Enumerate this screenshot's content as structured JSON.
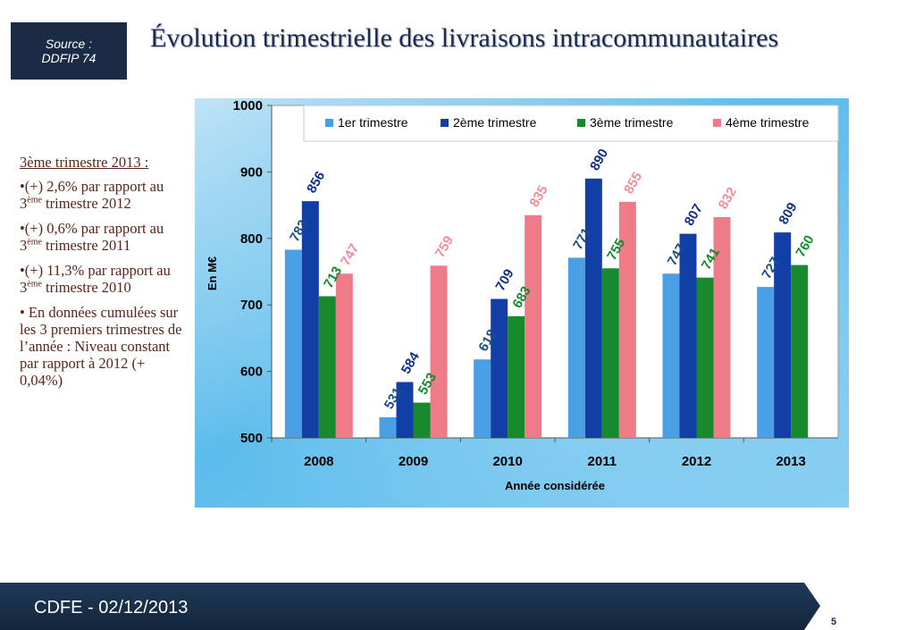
{
  "source": {
    "line1": "Source :",
    "line2": "DDFIP 74"
  },
  "title": "Évolution trimestrielle des livraisons intracommunautaires",
  "side_notes": {
    "heading": "3ème trimestre 2013 :",
    "items": [
      {
        "pre": "•(+) 2,6% par rapport au 3",
        "sup": "ème",
        "post": " trimestre 2012"
      },
      {
        "pre": "•(+) 0,6% par rapport au 3",
        "sup": "ème",
        "post": " trimestre 2011"
      },
      {
        "pre": "•(+) 11,3% par rapport au 3",
        "sup": "ème",
        "post": " trimestre 2010"
      },
      {
        "pre": "• En données cumulées sur les 3 premiers trimestres de l’année : Niveau constant par rapport à 2012 (+ 0,04%)",
        "sup": "",
        "post": ""
      }
    ]
  },
  "footer": {
    "text": "CDFE - 02/12/2013",
    "page_number": "5"
  },
  "colors": {
    "q1": "#4a9fe4",
    "q2": "#123fa6",
    "q3": "#168a2c",
    "q4": "#f07b88",
    "q4_label": "#f48c98",
    "q1_label": "#1a4d8c",
    "q2_label": "#102f88",
    "q3_label": "#128a2a"
  },
  "chart_data": {
    "type": "bar",
    "categories": [
      "2008",
      "2009",
      "2010",
      "2011",
      "2012",
      "2013"
    ],
    "series": [
      {
        "name": "1er trimestre",
        "values": [
          783,
          531,
          618,
          771,
          747,
          727
        ]
      },
      {
        "name": "2ème trimestre",
        "values": [
          856,
          584,
          709,
          890,
          807,
          809
        ]
      },
      {
        "name": "3ème trimestre",
        "values": [
          713,
          553,
          683,
          755,
          741,
          760
        ]
      },
      {
        "name": "4ème trimestre",
        "values": [
          747,
          759,
          835,
          855,
          832,
          null
        ]
      }
    ],
    "xlabel": "Année considérée",
    "ylabel": "En M€",
    "ylim": [
      500,
      1000
    ],
    "yticks": [
      500,
      600,
      700,
      800,
      900,
      1000
    ],
    "grid": false,
    "legend_position": "top"
  }
}
